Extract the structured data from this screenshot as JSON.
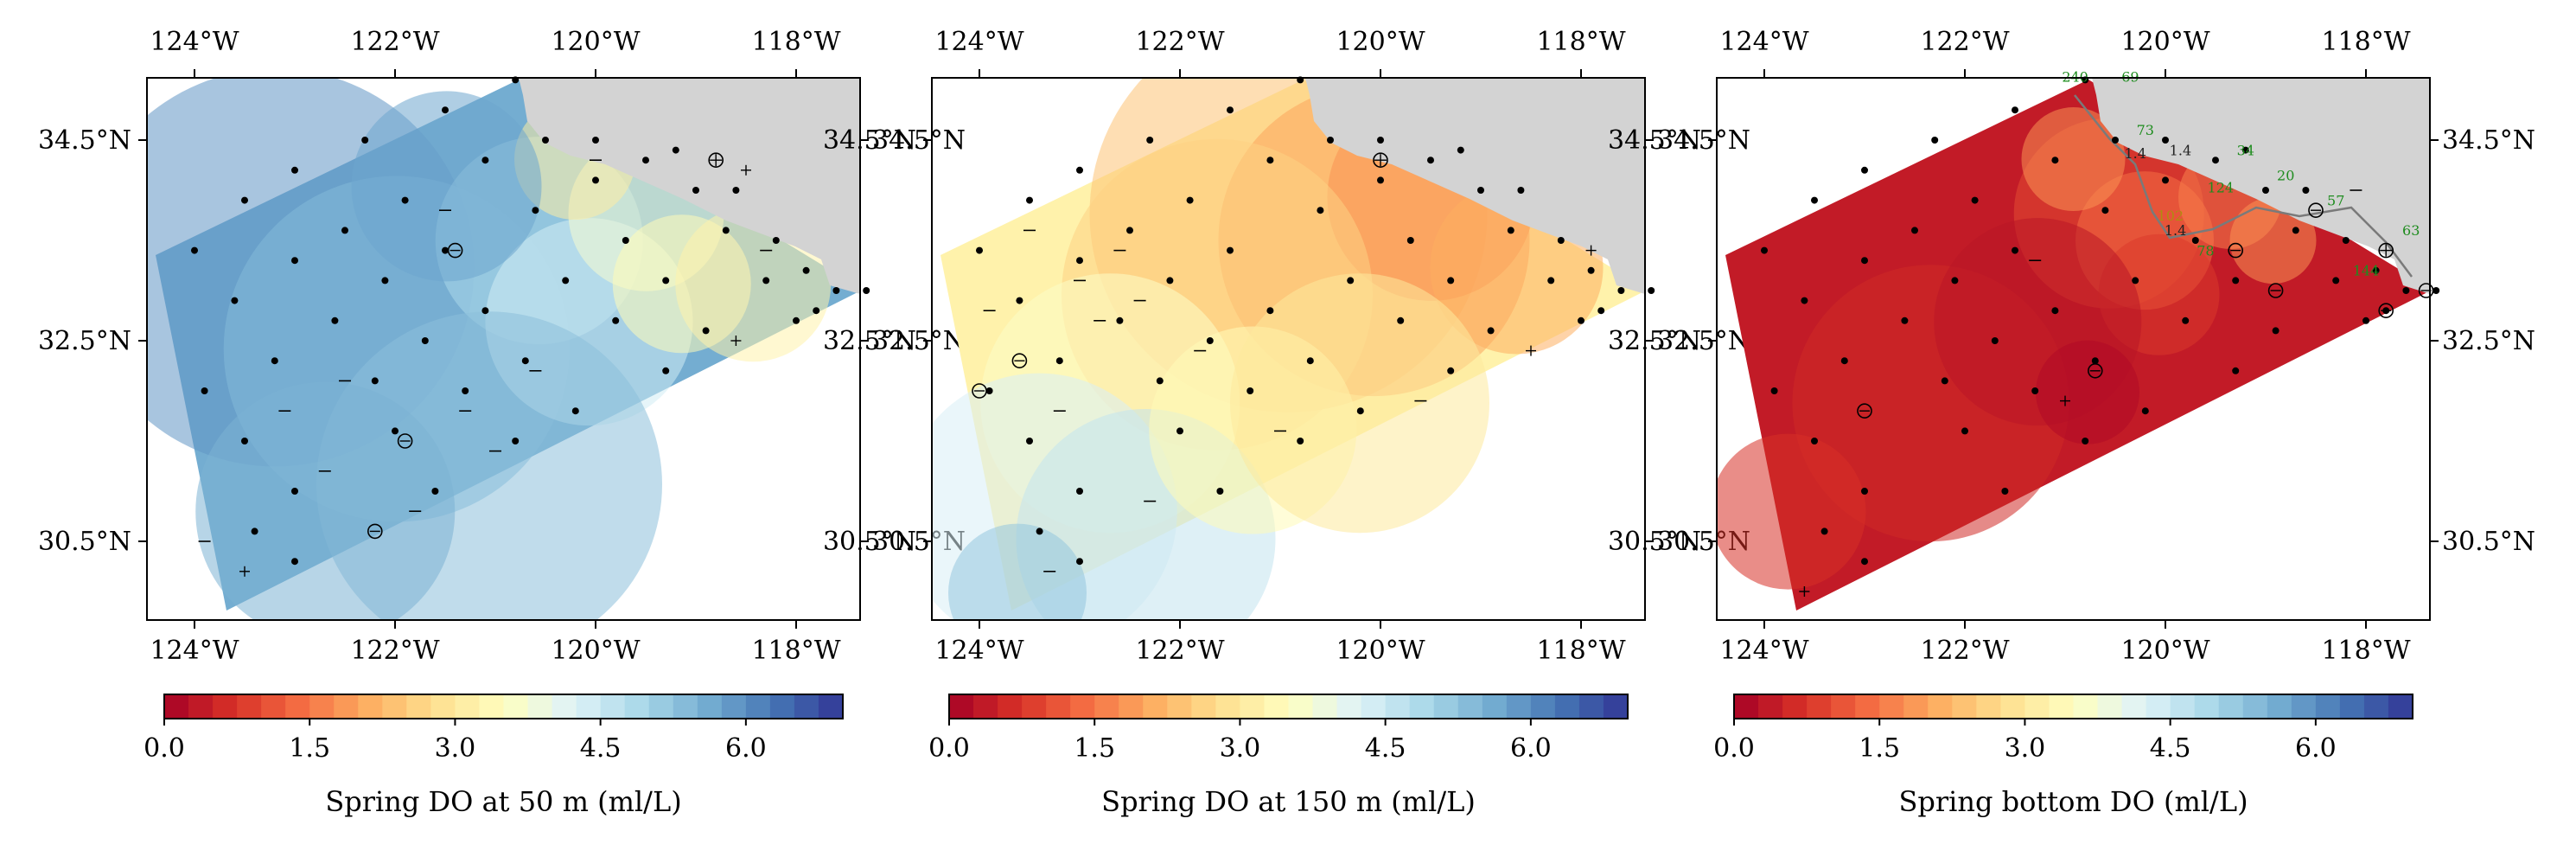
{
  "map": {
    "panels": [
      {
        "id": "do50",
        "colorbar_label": "Spring DO at 50 m (ml/L)",
        "theme": "cool",
        "open_circles": [
          [
            -121.4,
            33.4
          ],
          [
            -121.9,
            31.5
          ],
          [
            -122.2,
            30.6
          ]
        ],
        "crossed_circles": [
          [
            -118.8,
            34.3
          ]
        ],
        "plus": [
          [
            -118.5,
            34.2
          ],
          [
            -118.6,
            32.5
          ],
          [
            -123.5,
            30.2
          ]
        ],
        "dash": [
          [
            -120.0,
            34.3
          ],
          [
            -118.3,
            33.4
          ],
          [
            -121.5,
            33.8
          ],
          [
            -122.5,
            32.1
          ],
          [
            -123.1,
            31.8
          ],
          [
            -121.3,
            31.8
          ],
          [
            -120.6,
            32.2
          ],
          [
            -122.7,
            31.2
          ],
          [
            -121.8,
            30.8
          ],
          [
            -123.9,
            30.5
          ],
          [
            -121.0,
            31.4
          ]
        ],
        "labels": []
      },
      {
        "id": "do150",
        "colorbar_label": "Spring DO at 150 m (ml/L)",
        "theme": "warm",
        "open_circles": [
          [
            -123.6,
            32.3
          ],
          [
            -124.0,
            32.0
          ]
        ],
        "crossed_circles": [
          [
            -120.0,
            34.3
          ]
        ],
        "plus": [
          [
            -118.5,
            32.4
          ],
          [
            -117.9,
            33.4
          ]
        ],
        "dash": [
          [
            -123.5,
            33.6
          ],
          [
            -122.6,
            33.4
          ],
          [
            -123.0,
            33.1
          ],
          [
            -122.4,
            32.9
          ],
          [
            -122.8,
            32.7
          ],
          [
            -123.9,
            32.8
          ],
          [
            -121.8,
            32.4
          ],
          [
            -123.2,
            31.8
          ],
          [
            -121.0,
            31.6
          ],
          [
            -122.3,
            30.9
          ],
          [
            -123.3,
            30.2
          ],
          [
            -119.6,
            31.9
          ]
        ],
        "labels": []
      },
      {
        "id": "dobottom",
        "colorbar_label": "Spring bottom DO (ml/L)",
        "theme": "bottom",
        "open_circles": [
          [
            -119.3,
            33.4
          ],
          [
            -118.9,
            33.0
          ],
          [
            -123.0,
            31.8
          ],
          [
            -120.7,
            32.2
          ],
          [
            -117.4,
            33.0
          ],
          [
            -117.8,
            32.8
          ],
          [
            -118.5,
            33.8
          ]
        ],
        "crossed_circles": [
          [
            -117.8,
            33.4
          ]
        ],
        "plus": [
          [
            -121.0,
            31.9
          ],
          [
            -123.6,
            30.0
          ]
        ],
        "dash": [
          [
            -121.3,
            33.3
          ],
          [
            -118.1,
            34.0
          ]
        ],
        "labels": [
          {
            "t": "240",
            "lon": -120.9,
            "lat": 35.08,
            "c": "#1e8c1e"
          },
          {
            "t": "69",
            "lon": -120.35,
            "lat": 35.08,
            "c": "#1e8c1e"
          },
          {
            "t": "73",
            "lon": -120.2,
            "lat": 34.55,
            "c": "#1e8c1e"
          },
          {
            "t": "1.4",
            "lon": -120.3,
            "lat": 34.32,
            "c": "#222222"
          },
          {
            "t": "1.4",
            "lon": -119.85,
            "lat": 34.35,
            "c": "#222222"
          },
          {
            "t": "34",
            "lon": -119.2,
            "lat": 34.35,
            "c": "#1e8c1e"
          },
          {
            "t": "20",
            "lon": -118.8,
            "lat": 34.1,
            "c": "#1e8c1e"
          },
          {
            "t": "57",
            "lon": -118.3,
            "lat": 33.85,
            "c": "#1e8c1e"
          },
          {
            "t": "124",
            "lon": -119.45,
            "lat": 33.98,
            "c": "#1e8c1e"
          },
          {
            "t": "102",
            "lon": -119.95,
            "lat": 33.7,
            "c": "#b08c10"
          },
          {
            "t": "1.4",
            "lon": -119.9,
            "lat": 33.55,
            "c": "#222222"
          },
          {
            "t": "78",
            "lon": -119.6,
            "lat": 33.35,
            "c": "#1e8c1e"
          },
          {
            "t": "63",
            "lon": -117.55,
            "lat": 33.55,
            "c": "#1e8c1e"
          },
          {
            "t": "144",
            "lon": -118.0,
            "lat": 33.15,
            "c": "#1e8c1e"
          }
        ]
      }
    ],
    "lon_ticks": [
      {
        "v": -124,
        "t": "124°W"
      },
      {
        "v": -122,
        "t": "122°W"
      },
      {
        "v": -120,
        "t": "120°W"
      },
      {
        "v": -118,
        "t": "118°W"
      }
    ],
    "lat_ticks": [
      {
        "v": 34.5,
        "t": "34.5°N"
      },
      {
        "v": 32.5,
        "t": "32.5°N"
      },
      {
        "v": 30.5,
        "t": "30.5°N"
      }
    ],
    "colorbar": {
      "ticks": [
        {
          "v": 0.0,
          "t": "0.0"
        },
        {
          "v": 1.5,
          "t": "1.5"
        },
        {
          "v": 3.0,
          "t": "3.0"
        },
        {
          "v": 4.5,
          "t": "4.5"
        },
        {
          "v": 6.0,
          "t": "6.0"
        }
      ],
      "min": 0.0,
      "max": 7.0,
      "levels": 28,
      "stops": [
        "#a50026",
        "#d73027",
        "#f46d43",
        "#fdae61",
        "#fee090",
        "#ffffbf",
        "#e0f3f8",
        "#abd9e9",
        "#74add1",
        "#4575b4",
        "#313695"
      ]
    },
    "stations": [
      [
        -124.0,
        33.4
      ],
      [
        -123.6,
        32.9
      ],
      [
        -123.2,
        32.3
      ],
      [
        -123.9,
        32.0
      ],
      [
        -123.5,
        31.5
      ],
      [
        -123.0,
        31.0
      ],
      [
        -123.4,
        30.6
      ],
      [
        -123.0,
        30.3
      ],
      [
        -123.5,
        33.9
      ],
      [
        -123.0,
        33.3
      ],
      [
        -122.6,
        32.7
      ],
      [
        -122.2,
        32.1
      ],
      [
        -122.0,
        31.6
      ],
      [
        -121.6,
        31.0
      ],
      [
        -123.0,
        34.2
      ],
      [
        -122.5,
        33.6
      ],
      [
        -122.1,
        33.1
      ],
      [
        -121.7,
        32.5
      ],
      [
        -121.3,
        32.0
      ],
      [
        -120.8,
        31.5
      ],
      [
        -122.3,
        34.5
      ],
      [
        -121.9,
        33.9
      ],
      [
        -121.5,
        33.4
      ],
      [
        -121.1,
        32.8
      ],
      [
        -120.7,
        32.3
      ],
      [
        -120.2,
        31.8
      ],
      [
        -121.5,
        34.8
      ],
      [
        -121.1,
        34.3
      ],
      [
        -120.6,
        33.8
      ],
      [
        -120.3,
        33.1
      ],
      [
        -119.8,
        32.7
      ],
      [
        -119.3,
        32.2
      ],
      [
        -120.8,
        35.1
      ],
      [
        -120.5,
        34.5
      ],
      [
        -120.0,
        34.1
      ],
      [
        -119.7,
        33.5
      ],
      [
        -119.3,
        33.1
      ],
      [
        -118.9,
        32.6
      ],
      [
        -120.0,
        34.5
      ],
      [
        -119.5,
        34.3
      ],
      [
        -119.0,
        34.0
      ],
      [
        -118.7,
        33.6
      ],
      [
        -118.3,
        33.1
      ],
      [
        -118.0,
        32.7
      ],
      [
        -119.2,
        34.4
      ],
      [
        -118.6,
        34.0
      ],
      [
        -118.2,
        33.5
      ],
      [
        -117.9,
        33.2
      ],
      [
        -117.6,
        33.0
      ],
      [
        -117.3,
        33.0
      ],
      [
        -117.8,
        32.8
      ]
    ]
  }
}
